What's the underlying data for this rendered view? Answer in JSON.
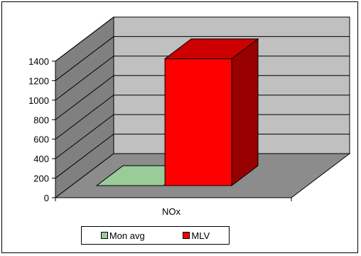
{
  "chart_data": {
    "type": "bar",
    "categories": [
      "NOx"
    ],
    "series": [
      {
        "name": "Mon avg",
        "values": [
          0
        ],
        "color": "#99cc99"
      },
      {
        "name": "MLV",
        "values": [
          1300
        ],
        "color": "#ff0000"
      }
    ],
    "ylim": [
      0,
      1400
    ],
    "yticks": [
      "0",
      "200",
      "400",
      "600",
      "800",
      "1000",
      "1200",
      "1400"
    ],
    "grid": true,
    "three_d": true,
    "legend_position": "bottom",
    "colors": {
      "wall": "#c0c0c0",
      "side_wall": "#808080",
      "floor": "#8c8c8c",
      "bar_side_dark": "#990000",
      "bar_top": "#cc0000"
    }
  }
}
